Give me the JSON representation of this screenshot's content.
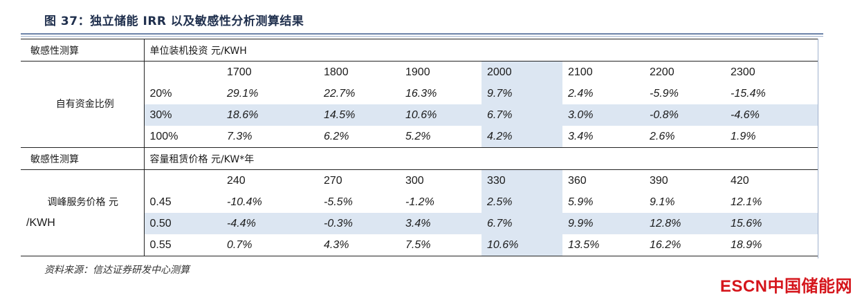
{
  "figure_title": "图 37：独立储能 IRR 以及敏感性分析测算结果",
  "source": "资料来源：信达证券研发中心测算",
  "logo": "ESCN中国储能网",
  "section1": {
    "label": "敏感性测算",
    "subtitle": "单位装机投资 元/KWH",
    "group_label": "自有资金比例",
    "columns": [
      "1700",
      "1800",
      "1900",
      "2000",
      "2100",
      "2200",
      "2300"
    ],
    "rows": [
      {
        "key": "20%",
        "values": [
          "29.1%",
          "22.7%",
          "16.3%",
          "9.7%",
          "2.4%",
          "-5.9%",
          "-15.4%"
        ]
      },
      {
        "key": "30%",
        "values": [
          "18.6%",
          "14.5%",
          "10.6%",
          "6.7%",
          "3.0%",
          "-0.8%",
          "-4.6%"
        ]
      },
      {
        "key": "100%",
        "values": [
          "7.3%",
          "6.2%",
          "5.2%",
          "4.2%",
          "3.4%",
          "2.6%",
          "1.9%"
        ]
      }
    ]
  },
  "section2": {
    "label": "敏感性测算",
    "subtitle": "容量租赁价格 元/KW*年",
    "group_label_line1": "调峰服务价格 元",
    "group_label_line2": "/KWH",
    "columns": [
      "240",
      "270",
      "300",
      "330",
      "360",
      "390",
      "420"
    ],
    "rows": [
      {
        "key": "0.45",
        "values": [
          "-10.4%",
          "-5.5%",
          "-1.2%",
          "2.5%",
          "5.9%",
          "9.1%",
          "12.1%"
        ]
      },
      {
        "key": "0.50",
        "values": [
          "-4.4%",
          "-0.3%",
          "3.4%",
          "6.7%",
          "9.9%",
          "12.8%",
          "15.6%"
        ]
      },
      {
        "key": "0.55",
        "values": [
          "0.7%",
          "4.3%",
          "7.5%",
          "10.6%",
          "13.5%",
          "16.2%",
          "18.9%"
        ]
      }
    ]
  },
  "colors": {
    "highlight": "#dce6f2",
    "logo": "#d5151b",
    "title": "#1f2f4d"
  }
}
